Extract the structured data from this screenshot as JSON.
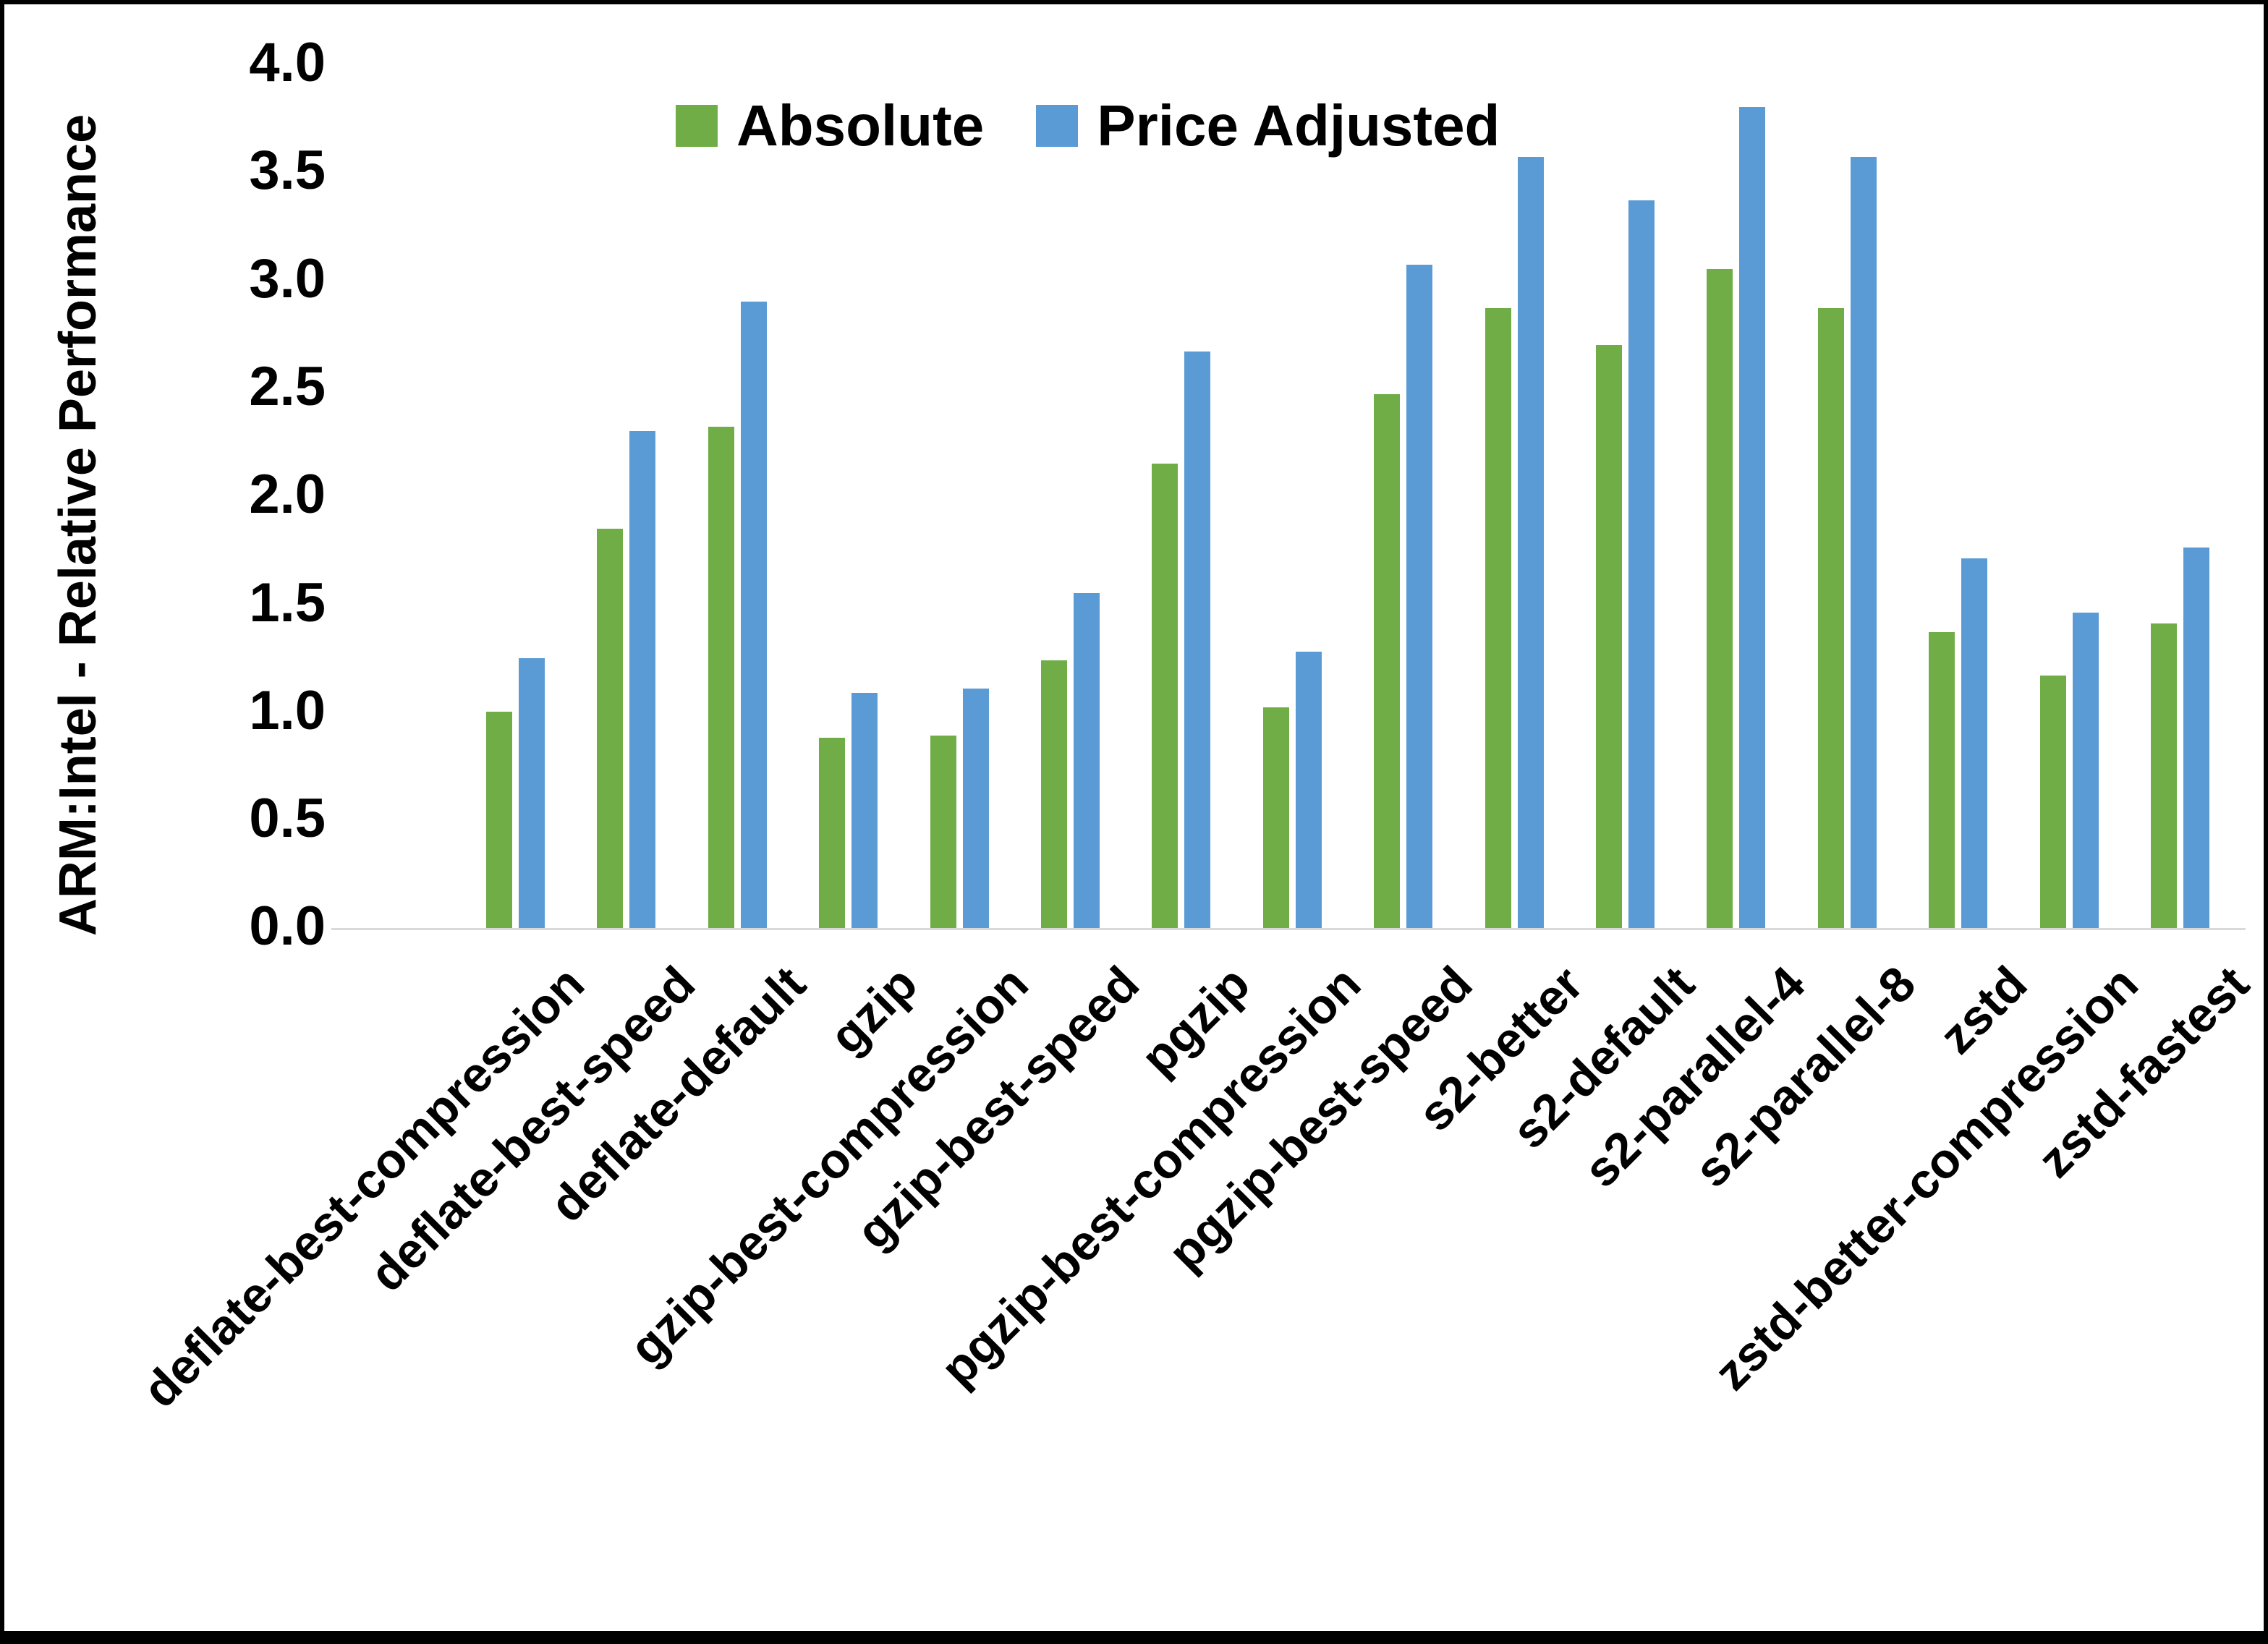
{
  "chart_data": {
    "type": "bar",
    "title": "",
    "xlabel": "",
    "ylabel": "ARM:Intel - Relative Performance",
    "ylim": [
      0.0,
      4.0
    ],
    "ytick_step": 0.5,
    "yticks": [
      "0.0",
      "0.5",
      "1.0",
      "1.5",
      "2.0",
      "2.5",
      "3.0",
      "3.5",
      "4.0"
    ],
    "grid": false,
    "legend_position": "top-center",
    "categories": [
      "deflate-best-compression",
      "deflate-best-speed",
      "deflate-default",
      "gzip",
      "gzip-best-compression",
      "gzip-best-speed",
      "pgzip",
      "pgzip-best-compression",
      "pgzip-best-speed",
      "s2-better",
      "s2-default",
      "s2-parallel-4",
      "s2-parallel-8",
      "zstd",
      "zstd-better-compression",
      "zstd-fastest"
    ],
    "series": [
      {
        "name": "Absolute",
        "color": "#70AD47",
        "values": [
          1.0,
          1.85,
          2.32,
          0.88,
          0.89,
          1.24,
          2.15,
          1.02,
          2.47,
          2.87,
          2.7,
          3.05,
          2.87,
          1.37,
          1.17,
          1.41
        ]
      },
      {
        "name": "Price Adjusted",
        "color": "#5B9BD5",
        "values": [
          1.25,
          2.3,
          2.9,
          1.09,
          1.11,
          1.55,
          2.67,
          1.28,
          3.07,
          3.57,
          3.37,
          3.8,
          3.57,
          1.71,
          1.46,
          1.76
        ]
      }
    ]
  }
}
